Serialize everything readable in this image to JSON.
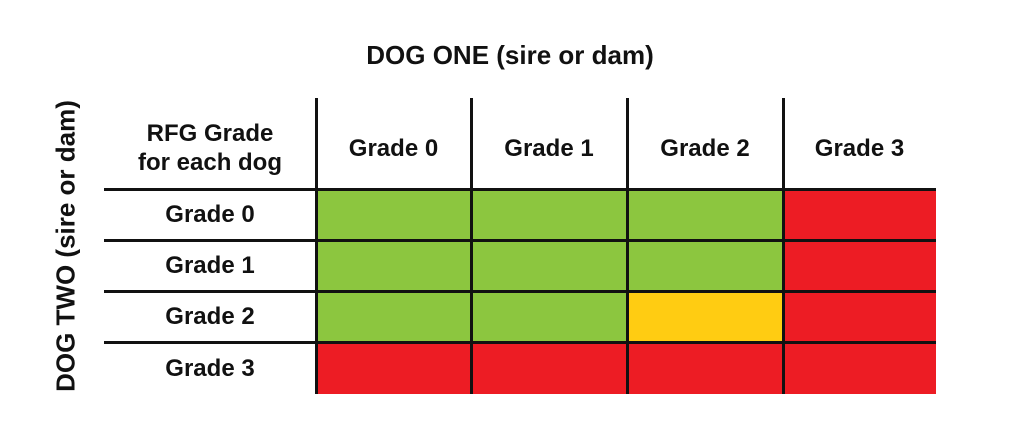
{
  "title_top": "DOG ONE (sire or dam)",
  "title_side": "DOG TWO (sire or dam)",
  "corner_label": [
    "RFG Grade",
    "for each dog"
  ],
  "columns": [
    "Grade 0",
    "Grade 1",
    "Grade 2",
    "Grade 3"
  ],
  "rows": [
    "Grade 0",
    "Grade 1",
    "Grade 2",
    "Grade 3"
  ],
  "colors": {
    "green": "#8cc63f",
    "yellow": "#ffcc12",
    "red": "#ed1c24"
  },
  "matrix": [
    [
      "green",
      "green",
      "green",
      "red"
    ],
    [
      "green",
      "green",
      "green",
      "red"
    ],
    [
      "green",
      "green",
      "yellow",
      "red"
    ],
    [
      "red",
      "red",
      "red",
      "red"
    ]
  ]
}
